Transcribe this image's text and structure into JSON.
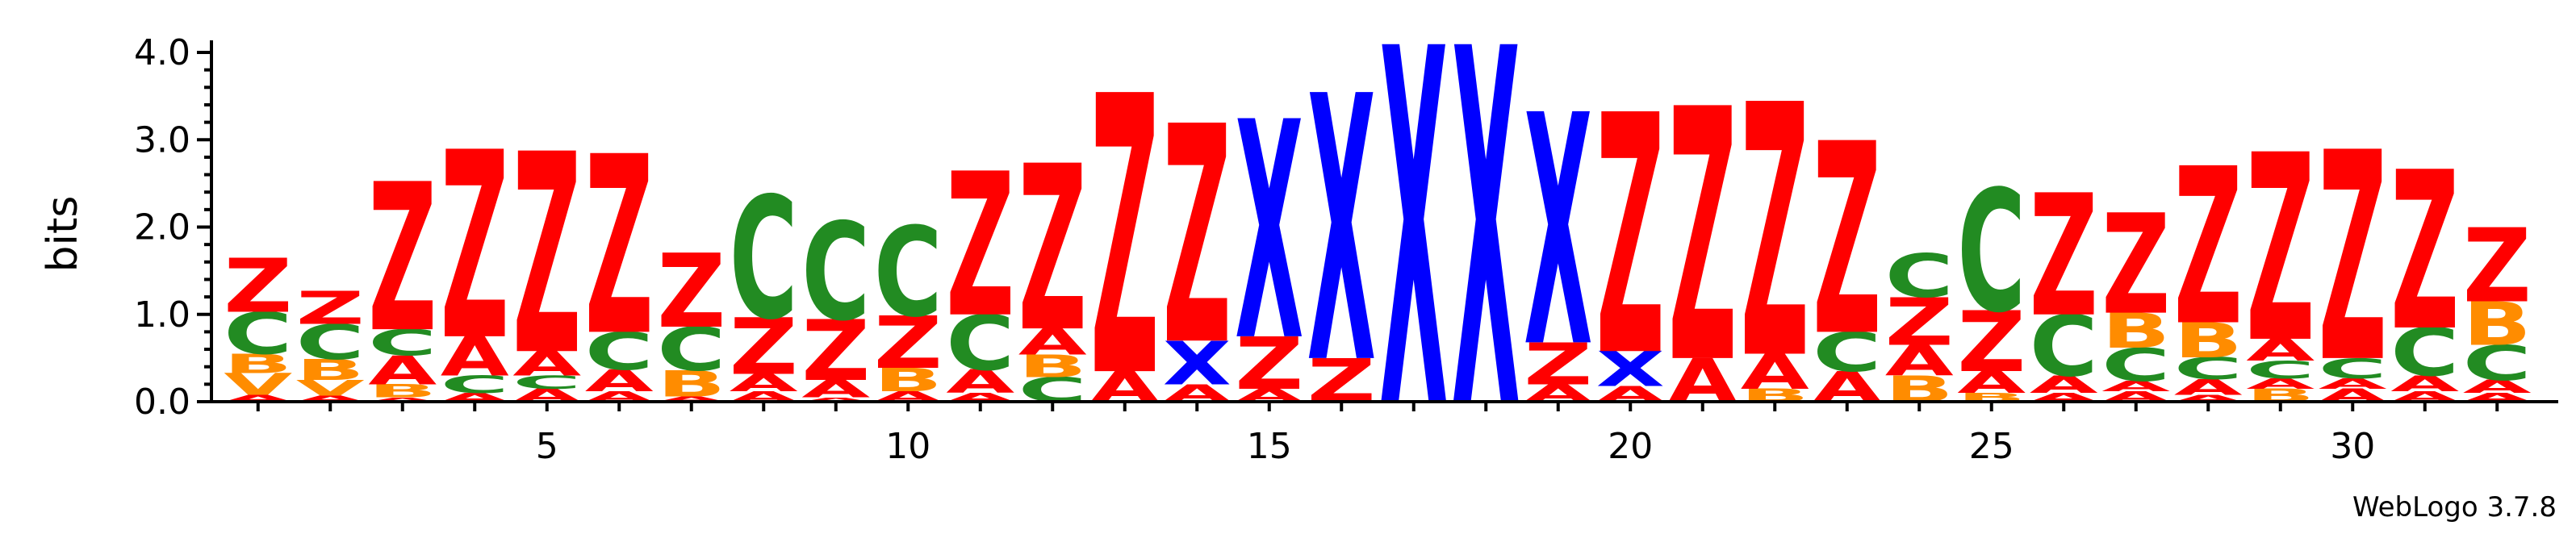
{
  "chart_data": {
    "type": "sequence-logo",
    "ylabel": "bits",
    "ylim": [
      0,
      4.0
    ],
    "yticks": [
      "0.0",
      "1.0",
      "2.0",
      "3.0",
      "4.0"
    ],
    "xticks": [
      5,
      10,
      15,
      20,
      25,
      30
    ],
    "positions": 32,
    "credit": "WebLogo 3.7.8",
    "colors": {
      "Z": "#ff0000",
      "A": "#ff0000",
      "C": "#228b22",
      "B": "#ff8c00",
      "V": "#ff8c00",
      "X": "#0000ff"
    },
    "stacks": [
      [
        [
          "A",
          0.08
        ],
        [
          "V",
          0.25
        ],
        [
          "B",
          0.22
        ],
        [
          "C",
          0.48
        ],
        [
          "Z",
          0.62
        ]
      ],
      [
        [
          "A",
          0.07
        ],
        [
          "V",
          0.18
        ],
        [
          "B",
          0.24
        ],
        [
          "C",
          0.4
        ],
        [
          "Z",
          0.38
        ]
      ],
      [
        [
          "A",
          0.05
        ],
        [
          "B",
          0.15
        ],
        [
          "A",
          0.33
        ],
        [
          "C",
          0.3
        ],
        [
          "Z",
          1.7
        ]
      ],
      [
        [
          "A",
          0.1
        ],
        [
          "C",
          0.2
        ],
        [
          "A",
          0.45
        ],
        [
          "Z",
          2.15
        ]
      ],
      [
        [
          "A",
          0.15
        ],
        [
          "C",
          0.15
        ],
        [
          "A",
          0.28
        ],
        [
          "Z",
          2.3
        ]
      ],
      [
        [
          "A",
          0.12
        ],
        [
          "A",
          0.25
        ],
        [
          "C",
          0.43
        ],
        [
          "Z",
          2.05
        ]
      ],
      [
        [
          "A",
          0.06
        ],
        [
          "B",
          0.3
        ],
        [
          "C",
          0.5
        ],
        [
          "Z",
          0.85
        ]
      ],
      [
        [
          "A",
          0.12
        ],
        [
          "A",
          0.2
        ],
        [
          "Z",
          0.65
        ],
        [
          "C",
          1.4
        ]
      ],
      [
        [
          "A",
          0.05
        ],
        [
          "A",
          0.2
        ],
        [
          "Z",
          0.7
        ],
        [
          "C",
          1.12
        ]
      ],
      [
        [
          "A",
          0.12
        ],
        [
          "B",
          0.27
        ],
        [
          "Z",
          0.6
        ],
        [
          "C",
          1.03
        ]
      ],
      [
        [
          "A",
          0.1
        ],
        [
          "A",
          0.27
        ],
        [
          "C",
          0.63
        ],
        [
          "Z",
          1.65
        ]
      ],
      [
        [
          "C",
          0.28
        ],
        [
          "B",
          0.26
        ],
        [
          "A",
          0.3
        ],
        [
          "Z",
          1.9
        ]
      ],
      [
        [
          "A",
          0.35
        ],
        [
          "Z",
          3.2
        ]
      ],
      [
        [
          "A",
          0.2
        ],
        [
          "X",
          0.5
        ],
        [
          "Z",
          2.5
        ]
      ],
      [
        [
          "A",
          0.15
        ],
        [
          "Z",
          0.6
        ],
        [
          "X",
          2.5
        ]
      ],
      [
        [
          "Z",
          0.5
        ],
        [
          "X",
          3.05
        ]
      ],
      [
        [
          "X",
          4.1
        ]
      ],
      [
        [
          "X",
          4.1
        ]
      ],
      [
        [
          "A",
          0.2
        ],
        [
          "Z",
          0.48
        ],
        [
          "X",
          2.65
        ]
      ],
      [
        [
          "A",
          0.18
        ],
        [
          "X",
          0.4
        ],
        [
          "Z",
          2.75
        ]
      ],
      [
        [
          "A",
          0.5
        ],
        [
          "Z",
          2.9
        ]
      ],
      [
        [
          "B",
          0.15
        ],
        [
          "A",
          0.4
        ],
        [
          "Z",
          2.9
        ]
      ],
      [
        [
          "A",
          0.35
        ],
        [
          "C",
          0.45
        ],
        [
          "Z",
          2.2
        ]
      ],
      [
        [
          "B",
          0.3
        ],
        [
          "A",
          0.35
        ],
        [
          "Z",
          0.55
        ],
        [
          "C",
          0.5
        ]
      ],
      [
        [
          "B",
          0.1
        ],
        [
          "A",
          0.25
        ],
        [
          "Z",
          0.7
        ],
        [
          "C",
          1.4
        ]
      ],
      [
        [
          "A",
          0.1
        ],
        [
          "A",
          0.2
        ],
        [
          "C",
          0.7
        ],
        [
          "Z",
          1.4
        ]
      ],
      [
        [
          "A",
          0.12
        ],
        [
          "A",
          0.12
        ],
        [
          "C",
          0.38
        ],
        [
          "B",
          0.4
        ],
        [
          "Z",
          1.15
        ]
      ],
      [
        [
          "A",
          0.08
        ],
        [
          "A",
          0.18
        ],
        [
          "C",
          0.25
        ],
        [
          "B",
          0.4
        ],
        [
          "Z",
          1.8
        ]
      ],
      [
        [
          "B",
          0.15
        ],
        [
          "A",
          0.12
        ],
        [
          "C",
          0.2
        ],
        [
          "A",
          0.25
        ],
        [
          "Z",
          2.15
        ]
      ],
      [
        [
          "A",
          0.15
        ],
        [
          "A",
          0.12
        ],
        [
          "C",
          0.23
        ],
        [
          "Z",
          2.4
        ]
      ],
      [
        [
          "A",
          0.12
        ],
        [
          "A",
          0.18
        ],
        [
          "C",
          0.55
        ],
        [
          "Z",
          1.82
        ]
      ],
      [
        [
          "A",
          0.1
        ],
        [
          "A",
          0.15
        ],
        [
          "C",
          0.4
        ],
        [
          "B",
          0.5
        ],
        [
          "Z",
          0.85
        ]
      ]
    ]
  }
}
